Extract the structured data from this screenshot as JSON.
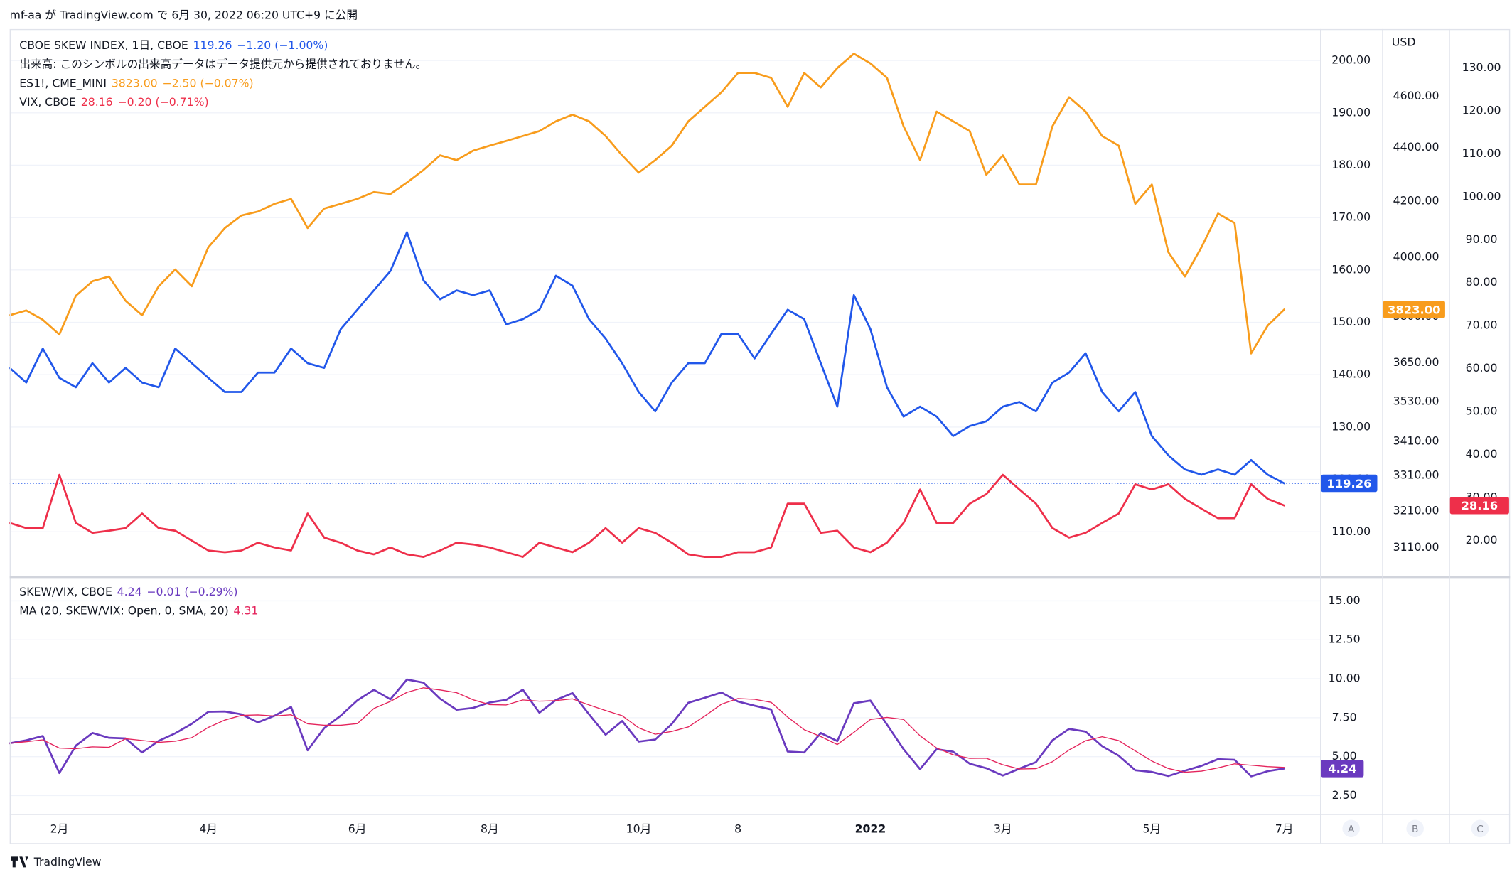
{
  "header": "mf-aa が TradingView.com で 6月 30, 2022 06:20 UTC+9 に公開",
  "footer": "TradingView",
  "scale_buttons": [
    "A",
    "B",
    "C"
  ],
  "chart_data": [
    {
      "type": "line",
      "notes": [
        "出来高: このシンボルの出来高データはデータ提供元から提供されておりません。"
      ],
      "series": [
        {
          "name": "CBOE SKEW INDEX, 1日, CBOE",
          "change": "−1.20 (−1.00%)",
          "color": "#2157ea",
          "axis": "y",
          "price_tag": true,
          "price_line": true,
          "values": [
            141.3,
            138.5,
            145.0,
            139.4,
            137.6,
            142.2,
            138.5,
            141.3,
            138.5,
            137.6,
            145.0,
            142.2,
            139.4,
            136.7,
            136.7,
            140.4,
            140.4,
            145.0,
            142.2,
            141.3,
            148.7,
            152.4,
            156.1,
            159.8,
            167.2,
            158.0,
            154.4,
            156.1,
            155.2,
            156.1,
            149.6,
            150.6,
            152.4,
            158.9,
            157.0,
            150.6,
            146.9,
            142.2,
            136.7,
            133.0,
            138.5,
            142.2,
            142.2,
            147.8,
            147.8,
            143.1,
            147.8,
            152.4,
            150.6,
            142.2,
            133.9,
            155.2,
            148.7,
            137.6,
            132.0,
            133.9,
            132.0,
            128.3,
            130.2,
            131.1,
            133.9,
            134.8,
            133.0,
            138.5,
            140.4,
            144.1,
            136.7,
            133.0,
            136.7,
            128.3,
            124.6,
            121.9,
            120.9,
            121.9,
            120.9,
            123.7,
            120.9,
            119.26
          ]
        },
        {
          "name": "ES1!, CME_MINI",
          "change": "−2.50 (−0.07%)",
          "last_value_label": "3823.00",
          "color": "#f89c1c",
          "axis": "y2",
          "price_tag": true,
          "values": [
            3804,
            3820,
            3789,
            3741,
            3869,
            3918,
            3934,
            3852,
            3804,
            3901,
            3958,
            3901,
            4035,
            4103,
            4148,
            4162,
            4190,
            4208,
            4103,
            4173,
            4190,
            4208,
            4233,
            4226,
            4268,
            4315,
            4370,
            4352,
            4388,
            4407,
            4425,
            4444,
            4463,
            4501,
            4527,
            4501,
            4444,
            4370,
            4305,
            4352,
            4407,
            4501,
            4558,
            4616,
            4694,
            4694,
            4674,
            4558,
            4694,
            4635,
            4714,
            4773,
            4733,
            4674,
            4482,
            4352,
            4539,
            4501,
            4463,
            4297,
            4370,
            4261,
            4261,
            4482,
            4596,
            4539,
            4444,
            4407,
            4190,
            4261,
            4018,
            3934,
            4035,
            4155,
            4121,
            3680,
            3770,
            3823
          ]
        },
        {
          "name": "VIX, CBOE",
          "change": "−0.20 (−0.71%)",
          "color": "#ee2f4a",
          "axis": "y3",
          "price_tag": true,
          "values": [
            24.1,
            22.9,
            22.9,
            35.3,
            24.1,
            21.8,
            22.3,
            22.9,
            26.3,
            22.9,
            22.3,
            20.0,
            17.7,
            17.3,
            17.7,
            19.5,
            18.4,
            17.7,
            26.3,
            20.7,
            19.5,
            17.7,
            16.8,
            18.4,
            16.8,
            16.2,
            17.7,
            19.5,
            19.1,
            18.4,
            17.3,
            16.2,
            19.5,
            18.4,
            17.3,
            19.5,
            22.9,
            19.5,
            22.9,
            21.8,
            19.5,
            16.8,
            16.2,
            16.2,
            17.3,
            17.3,
            18.4,
            28.6,
            28.6,
            21.8,
            22.3,
            18.4,
            17.3,
            19.5,
            24.1,
            31.9,
            24.1,
            24.1,
            28.6,
            30.8,
            35.3,
            31.9,
            28.6,
            22.9,
            20.7,
            21.8,
            24.1,
            26.3,
            33.1,
            31.9,
            33.1,
            29.7,
            27.4,
            25.2,
            25.2,
            33.1,
            29.7,
            28.16
          ]
        }
      ],
      "ylim": [
        102,
        206
      ],
      "yticks": [
        {
          "value": 110,
          "label": "110.00"
        },
        {
          "value": 120,
          "label": "120.00"
        },
        {
          "value": 130,
          "label": "130.00"
        },
        {
          "value": 140,
          "label": "140.00"
        },
        {
          "value": 150,
          "label": "150.00"
        },
        {
          "value": 160,
          "label": "160.00"
        },
        {
          "value": 170,
          "label": "170.00"
        },
        {
          "value": 180,
          "label": "180.00"
        },
        {
          "value": 190,
          "label": "190.00"
        },
        {
          "value": 200,
          "label": "200.00"
        }
      ],
      "y2label": "USD",
      "y2log": true,
      "y2lim": [
        3040,
        4876
      ],
      "y2ticks": [
        {
          "value": 3110,
          "label": "3110.00"
        },
        {
          "value": 3210,
          "label": "3210.00"
        },
        {
          "value": 3310,
          "label": "3310.00"
        },
        {
          "value": 3410,
          "label": "3410.00"
        },
        {
          "value": 3530,
          "label": "3530.00"
        },
        {
          "value": 3650,
          "label": "3650.00"
        },
        {
          "value": 3800,
          "label": "3800.00"
        },
        {
          "value": 4000,
          "label": "4000.00"
        },
        {
          "value": 4200,
          "label": "4200.00"
        },
        {
          "value": 4400,
          "label": "4400.00"
        },
        {
          "value": 4600,
          "label": "4600.00"
        }
      ],
      "y3lim": [
        12.3,
        139
      ],
      "y3ticks": [
        {
          "value": 20,
          "label": "20.00"
        },
        {
          "value": 30,
          "label": "30.00"
        },
        {
          "value": 40,
          "label": "40.00"
        },
        {
          "value": 50,
          "label": "50.00"
        },
        {
          "value": 60,
          "label": "60.00"
        },
        {
          "value": 70,
          "label": "70.00"
        },
        {
          "value": 80,
          "label": "80.00"
        },
        {
          "value": 90,
          "label": "90.00"
        },
        {
          "value": 100,
          "label": "100.00"
        },
        {
          "value": 110,
          "label": "110.00"
        },
        {
          "value": 120,
          "label": "120.00"
        },
        {
          "value": 130,
          "label": "130.00"
        }
      ],
      "grid": true
    },
    {
      "type": "line",
      "categories": [
        null,
        null,
        null,
        "2月",
        null,
        null,
        null,
        null,
        null,
        null,
        null,
        null,
        "4月",
        null,
        null,
        null,
        null,
        null,
        null,
        null,
        null,
        "6月",
        null,
        null,
        null,
        null,
        null,
        null,
        null,
        "8月",
        null,
        null,
        null,
        null,
        null,
        null,
        null,
        null,
        "10月",
        null,
        null,
        null,
        null,
        null,
        "8",
        null,
        null,
        null,
        null,
        null,
        null,
        null,
        "2022",
        null,
        null,
        null,
        null,
        null,
        null,
        null,
        "3月",
        null,
        null,
        null,
        null,
        null,
        null,
        null,
        null,
        "5月",
        null,
        null,
        null,
        null,
        null,
        null,
        null,
        "7月"
      ],
      "series": [
        {
          "name": "SKEW/VIX, CBOE",
          "change": "−0.01 (−0.29%)",
          "color": "#6a3abf",
          "axis": "y",
          "price_tag": true,
          "values": [
            5.86,
            6.05,
            6.33,
            3.95,
            5.71,
            6.52,
            6.21,
            6.17,
            5.27,
            6.01,
            6.5,
            7.11,
            7.88,
            7.9,
            7.72,
            7.2,
            7.63,
            8.19,
            5.41,
            6.83,
            7.63,
            8.61,
            9.29,
            8.68,
            9.95,
            9.75,
            8.72,
            8.01,
            8.13,
            8.48,
            8.65,
            9.3,
            7.82,
            8.64,
            9.08,
            7.72,
            6.41,
            7.29,
            5.97,
            6.1,
            7.1,
            8.46,
            8.78,
            9.12,
            8.54,
            8.27,
            8.03,
            5.33,
            5.27,
            6.52,
            6.0,
            8.43,
            8.6,
            7.06,
            5.48,
            4.2,
            5.48,
            5.32,
            4.55,
            4.26,
            3.79,
            4.23,
            4.65,
            6.05,
            6.78,
            6.61,
            5.67,
            5.06,
            4.13,
            4.02,
            3.76,
            4.1,
            4.41,
            4.84,
            4.8,
            3.74,
            4.07,
            4.24
          ]
        },
        {
          "name": "MA (20, SKEW/VIX: Open, 0, SMA, 20)",
          "color": "#e4245c",
          "axis": "y",
          "values": [
            5.86,
            5.96,
            6.08,
            5.55,
            5.51,
            5.63,
            5.6,
            6.15,
            6.04,
            5.92,
            5.99,
            6.22,
            6.88,
            7.35,
            7.65,
            7.68,
            7.61,
            7.69,
            7.11,
            7.02,
            7.02,
            7.12,
            8.09,
            8.55,
            9.13,
            9.42,
            9.28,
            9.11,
            8.65,
            8.34,
            8.32,
            8.64,
            8.56,
            8.6,
            8.71,
            8.32,
            7.96,
            7.63,
            6.85,
            6.44,
            6.62,
            6.91,
            7.61,
            8.37,
            8.73,
            8.68,
            8.49,
            7.54,
            6.73,
            6.29,
            5.78,
            6.56,
            7.39,
            7.52,
            7.39,
            6.34,
            5.56,
            5.12,
            4.89,
            4.9,
            4.48,
            4.21,
            4.23,
            4.68,
            5.43,
            6.02,
            6.28,
            6.03,
            5.37,
            4.72,
            4.24,
            4.0,
            4.07,
            4.28,
            4.54,
            4.45,
            4.36,
            4.31
          ]
        }
      ],
      "ylim": [
        1.32,
        16.37
      ],
      "yticks": [
        {
          "value": 2.5,
          "label": "2.50"
        },
        {
          "value": 5,
          "label": "5.00"
        },
        {
          "value": 7.5,
          "label": "7.50"
        },
        {
          "value": 10,
          "label": "10.00"
        },
        {
          "value": 12.5,
          "label": "12.50"
        },
        {
          "value": 15,
          "label": "15.00"
        }
      ],
      "grid": true
    }
  ]
}
